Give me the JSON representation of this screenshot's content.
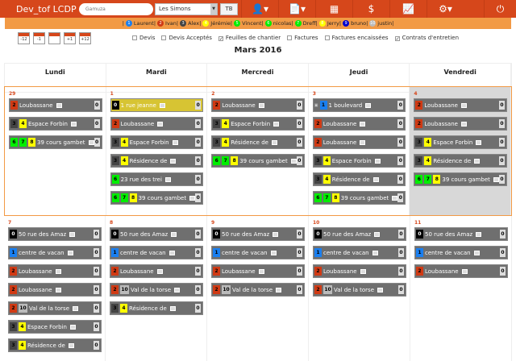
{
  "app": {
    "title": "Dev_tof LCDP",
    "search_placeholder": "Gamuza",
    "site_select": "Les Simons",
    "tb_label": "TB"
  },
  "nav": [
    {
      "icon": "user-home-icon",
      "glyph": "👤▾"
    },
    {
      "icon": "document-icon",
      "glyph": "📄▾"
    },
    {
      "icon": "calendar-icon",
      "glyph": "▦"
    },
    {
      "icon": "dollar-icon",
      "glyph": "$"
    },
    {
      "icon": "chart-icon",
      "glyph": "📈"
    },
    {
      "icon": "gears-icon",
      "glyph": "⚙▾"
    },
    {
      "icon": "power-icon",
      "glyph": "⏻"
    }
  ],
  "users": [
    {
      "n": "1",
      "name": "Laurent",
      "color": "#1a7ff0"
    },
    {
      "n": "2",
      "name": "Ivan",
      "color": "#d03a14"
    },
    {
      "n": "3",
      "name": "Alex",
      "color": "#444444"
    },
    {
      "n": "4",
      "name": "Jérémie",
      "color": "#ffff00"
    },
    {
      "n": "5",
      "name": "Vincent",
      "color": "#00ee00"
    },
    {
      "n": "6",
      "name": "nicolas",
      "color": "#00ee00"
    },
    {
      "n": "7",
      "name": "Dreff",
      "color": "#00ee00"
    },
    {
      "n": "8",
      "name": "Jerry",
      "color": "#ffff00"
    },
    {
      "n": "9",
      "name": "bruno",
      "color": "#0000cc"
    },
    {
      "n": "10",
      "name": "justin",
      "color": "#bbbbbb"
    }
  ],
  "tools": [
    "-12",
    "-1",
    "",
    "+1",
    "+12"
  ],
  "filters": [
    {
      "label": "Devis",
      "checked": false
    },
    {
      "label": "Devis Acceptés",
      "checked": false
    },
    {
      "label": "Feuilles de chantier",
      "checked": true
    },
    {
      "label": "Factures",
      "checked": false
    },
    {
      "label": "Factures encaissées",
      "checked": false
    },
    {
      "label": "Contrats d'entretien",
      "checked": true
    }
  ],
  "month_title": "Mars 2016",
  "weekdays": [
    "Lundi",
    "Mardi",
    "Mercredi",
    "Jeudi",
    "Vendredi"
  ],
  "badge_colors": {
    "0": "#000000",
    "1": "#1a7ff0",
    "2": "#d03a14",
    "3": "#444444",
    "4": "#ffff00",
    "6": "#00ee00",
    "7": "#00ee00",
    "8": "#ffff00",
    "10": "#bbbbbb"
  },
  "highlight_color": "#d7c433",
  "weeks": [
    [
      {
        "date": "29",
        "events": [
          {
            "b": [
              "2"
            ],
            "label": "Loubassane",
            "count": "0"
          },
          {
            "b": [
              "3",
              "4"
            ],
            "label": "Espace Forbin",
            "count": "0"
          },
          {
            "b": [
              "6",
              "7",
              "8"
            ],
            "label": "39 cours gambet",
            "count": "0"
          }
        ]
      },
      {
        "date": "1",
        "events": [
          {
            "b": [
              "0"
            ],
            "label": "1 rue jeanne",
            "count": "0",
            "highlight": true
          },
          {
            "b": [
              "2"
            ],
            "label": "Loubassane",
            "count": "0"
          },
          {
            "b": [
              "3",
              "4"
            ],
            "label": "Espace Forbin",
            "count": "0"
          },
          {
            "b": [
              "3",
              "4"
            ],
            "label": "Résidence de",
            "count": "0"
          },
          {
            "b": [
              "6"
            ],
            "label": "23 rue des trei",
            "count": "0"
          },
          {
            "b": [
              "6",
              "7",
              "8"
            ],
            "label": "39 cours gambet",
            "count": "0"
          }
        ]
      },
      {
        "date": "2",
        "events": [
          {
            "b": [
              "2"
            ],
            "label": "Loubassane",
            "count": "0"
          },
          {
            "b": [
              "3",
              "4"
            ],
            "label": "Espace Forbin",
            "count": "0"
          },
          {
            "b": [
              "3",
              "4"
            ],
            "label": "Résidence de",
            "count": "0"
          },
          {
            "b": [
              "6",
              "7",
              "8"
            ],
            "label": "39 cours gambet",
            "count": "0"
          }
        ]
      },
      {
        "date": "3",
        "events": [
          {
            "b": [
              "1"
            ],
            "label": "1 boulevard",
            "count": "0",
            "prefix": "img"
          },
          {
            "b": [
              "2"
            ],
            "label": "Loubassane",
            "count": "0"
          },
          {
            "b": [
              "2"
            ],
            "label": "Loubassane",
            "count": "0"
          },
          {
            "b": [
              "3",
              "4"
            ],
            "label": "Espace Forbin",
            "count": "0"
          },
          {
            "b": [
              "3",
              "4"
            ],
            "label": "Résidence de",
            "count": "0"
          },
          {
            "b": [
              "6",
              "7",
              "8"
            ],
            "label": "39 cours gambet",
            "count": "0"
          }
        ]
      },
      {
        "date": "4",
        "gray": true,
        "events": [
          {
            "b": [
              "2"
            ],
            "label": "Loubassane",
            "count": "0"
          },
          {
            "b": [
              "2"
            ],
            "label": "Loubassane",
            "count": "0"
          },
          {
            "b": [
              "3",
              "4"
            ],
            "label": "Espace Forbin",
            "count": "0"
          },
          {
            "b": [
              "3",
              "4"
            ],
            "label": "Résidence de",
            "count": "0"
          },
          {
            "b": [
              "6",
              "7",
              "8"
            ],
            "label": "39 cours gambet",
            "count": "0"
          }
        ]
      }
    ],
    [
      {
        "date": "7",
        "events": [
          {
            "b": [
              "0"
            ],
            "label": "50 rue des Amaz",
            "count": "0"
          },
          {
            "b": [
              "1"
            ],
            "label": "centre de vacan",
            "count": "0"
          },
          {
            "b": [
              "2"
            ],
            "label": "Loubassane",
            "count": "0"
          },
          {
            "b": [
              "2"
            ],
            "label": "Loubassane",
            "count": "0"
          },
          {
            "b": [
              "2",
              "10"
            ],
            "label": "Val de la torse",
            "count": "0"
          },
          {
            "b": [
              "3",
              "4"
            ],
            "label": "Espace Forbin",
            "count": "0"
          },
          {
            "b": [
              "3",
              "4"
            ],
            "label": "Résidence de",
            "count": "0"
          }
        ]
      },
      {
        "date": "8",
        "events": [
          {
            "b": [
              "0"
            ],
            "label": "50 rue des Amaz",
            "count": "0"
          },
          {
            "b": [
              "1"
            ],
            "label": "centre de vacan",
            "count": "0"
          },
          {
            "b": [
              "2"
            ],
            "label": "Loubassane",
            "count": "0"
          },
          {
            "b": [
              "2",
              "10"
            ],
            "label": "Val de la torse",
            "count": "0"
          },
          {
            "b": [
              "3",
              "4"
            ],
            "label": "Résidence de",
            "count": "0"
          }
        ]
      },
      {
        "date": "9",
        "events": [
          {
            "b": [
              "0"
            ],
            "label": "50 rue des Amaz",
            "count": "0"
          },
          {
            "b": [
              "1"
            ],
            "label": "centre de vacan",
            "count": "0"
          },
          {
            "b": [
              "2"
            ],
            "label": "Loubassane",
            "count": "0"
          },
          {
            "b": [
              "2",
              "10"
            ],
            "label": "Val de la torse",
            "count": "0"
          }
        ]
      },
      {
        "date": "10",
        "events": [
          {
            "b": [
              "0"
            ],
            "label": "50 rue des Amaz",
            "count": "0"
          },
          {
            "b": [
              "1"
            ],
            "label": "centre de vacan",
            "count": "0"
          },
          {
            "b": [
              "2"
            ],
            "label": "Loubassane",
            "count": "0"
          },
          {
            "b": [
              "2",
              "10"
            ],
            "label": "Val de la torse",
            "count": "0"
          }
        ]
      },
      {
        "date": "11",
        "events": [
          {
            "b": [
              "0"
            ],
            "label": "50 rue des Amaz",
            "count": "0"
          },
          {
            "b": [
              "1"
            ],
            "label": "centre de vacan",
            "count": "0"
          },
          {
            "b": [
              "2"
            ],
            "label": "Loubassane",
            "count": "0"
          }
        ]
      }
    ]
  ]
}
